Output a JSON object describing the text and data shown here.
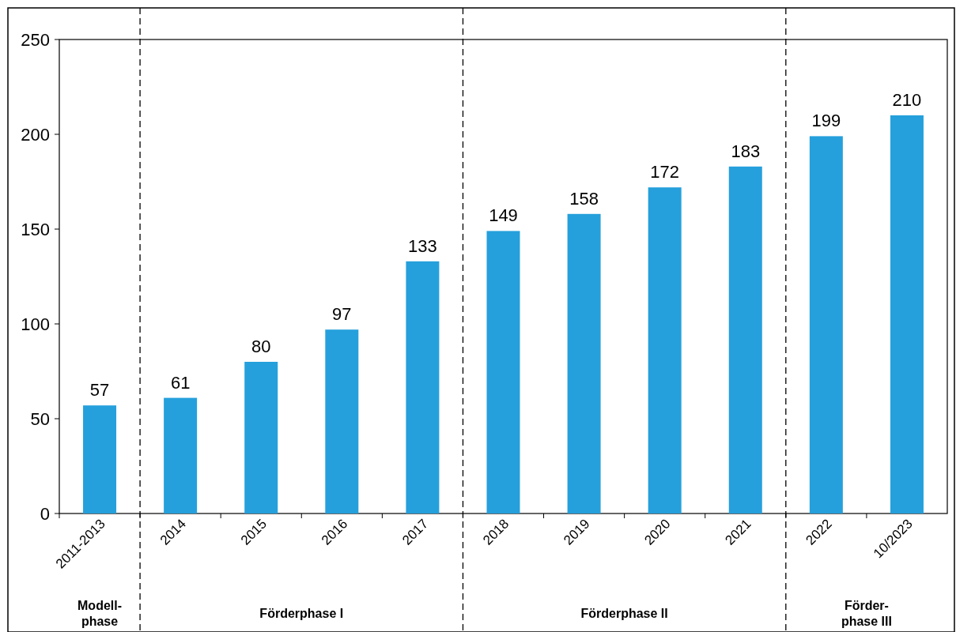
{
  "chart_data": {
    "type": "bar",
    "categories": [
      "2011-2013",
      "2014",
      "2015",
      "2016",
      "2017",
      "2018",
      "2019",
      "2020",
      "2021",
      "2022",
      "10/2023"
    ],
    "values": [
      57,
      61,
      80,
      97,
      133,
      149,
      158,
      172,
      183,
      199,
      210
    ],
    "color": "#25a0dc",
    "ylim": [
      0,
      250
    ],
    "yticks": [
      0,
      50,
      100,
      150,
      200,
      250
    ],
    "data_labels": true,
    "annotations": [
      "Modell-phase",
      "Förderphase I",
      "Förderphase II",
      "Förder-phase III"
    ]
  }
}
